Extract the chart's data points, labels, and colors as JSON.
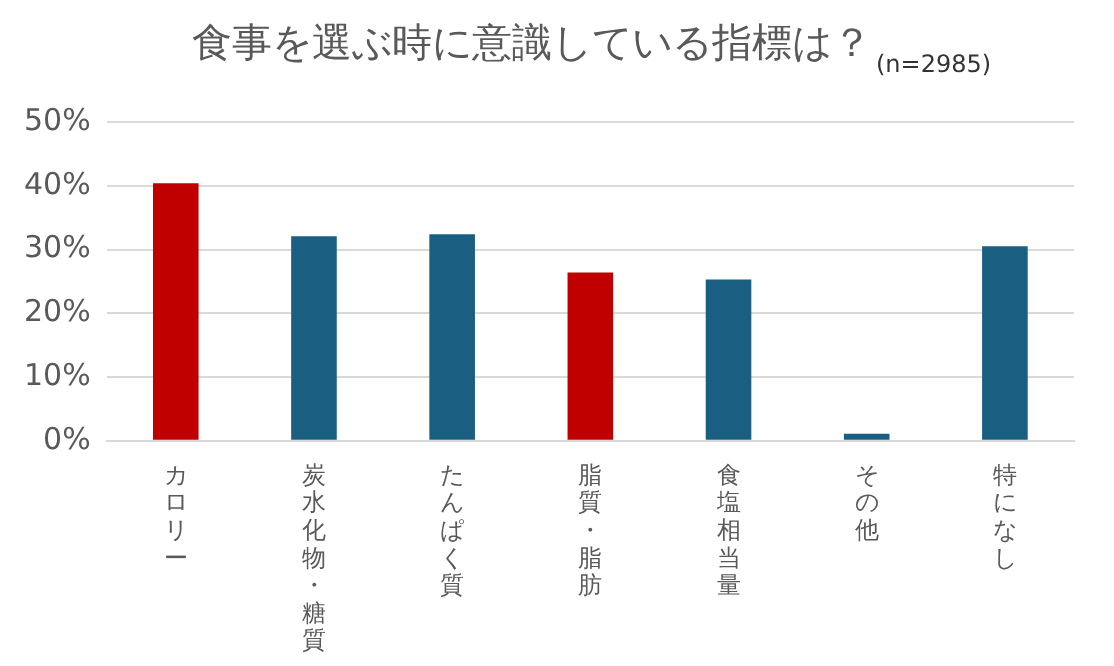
{
  "chart_data": {
    "type": "bar",
    "title": "食事を選ぶ時に意識している指標は？",
    "subtitle": "(n=2985)",
    "categories": [
      "カロリー",
      "炭水化物・糖質",
      "たんぱく質",
      "脂質・脂肪",
      "食塩相当量",
      "その他",
      "特になし"
    ],
    "values": [
      40.4,
      32.1,
      32.4,
      26.4,
      25.3,
      1.1,
      30.5
    ],
    "colors": [
      "#c00000",
      "#1a5f82",
      "#1a5f82",
      "#c00000",
      "#1a5f82",
      "#1a5f82",
      "#1a5f82"
    ],
    "ylim": [
      0,
      50
    ],
    "yticks": [
      {
        "value": 0,
        "label": "0%"
      },
      {
        "value": 10,
        "label": "10%"
      },
      {
        "value": 20,
        "label": "20%"
      },
      {
        "value": 30,
        "label": "30%"
      },
      {
        "value": 40,
        "label": "40%"
      },
      {
        "value": 50,
        "label": "50%"
      }
    ],
    "grid": "y",
    "legend": false
  }
}
